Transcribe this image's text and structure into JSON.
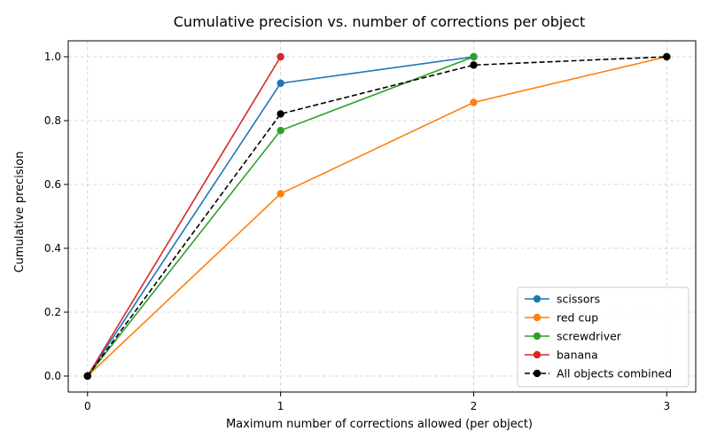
{
  "chart_data": {
    "type": "line",
    "title": "Cumulative precision vs. number of corrections per object",
    "xlabel": "Maximum number of corrections allowed (per object)",
    "ylabel": "Cumulative precision",
    "xlim": [
      -0.1,
      3.15
    ],
    "ylim": [
      -0.05,
      1.05
    ],
    "xticks": [
      0,
      1,
      2,
      3
    ],
    "xtick_labels": [
      "0",
      "1",
      "2",
      "3"
    ],
    "yticks": [
      0.0,
      0.2,
      0.4,
      0.6,
      0.8,
      1.0
    ],
    "ytick_labels": [
      "0.0",
      "0.2",
      "0.4",
      "0.6",
      "0.8",
      "1.0"
    ],
    "grid": true,
    "legend_position": "bottom-right",
    "series": [
      {
        "name": "scissors",
        "color": "#1f77b4",
        "dashed": false,
        "x": [
          0,
          1,
          2
        ],
        "y": [
          0.0,
          0.917,
          1.0
        ]
      },
      {
        "name": "red cup",
        "color": "#ff7f0e",
        "dashed": false,
        "x": [
          0,
          1,
          2,
          3
        ],
        "y": [
          0.0,
          0.571,
          0.857,
          1.0
        ]
      },
      {
        "name": "screwdriver",
        "color": "#2ca02c",
        "dashed": false,
        "x": [
          0,
          1,
          2
        ],
        "y": [
          0.0,
          0.769,
          1.0
        ]
      },
      {
        "name": "banana",
        "color": "#d62728",
        "dashed": false,
        "x": [
          0,
          1
        ],
        "y": [
          0.0,
          1.0
        ]
      },
      {
        "name": "All objects combined",
        "color": "#000000",
        "dashed": true,
        "x": [
          0,
          1,
          2,
          3
        ],
        "y": [
          0.0,
          0.821,
          0.974,
          1.0
        ]
      }
    ]
  }
}
